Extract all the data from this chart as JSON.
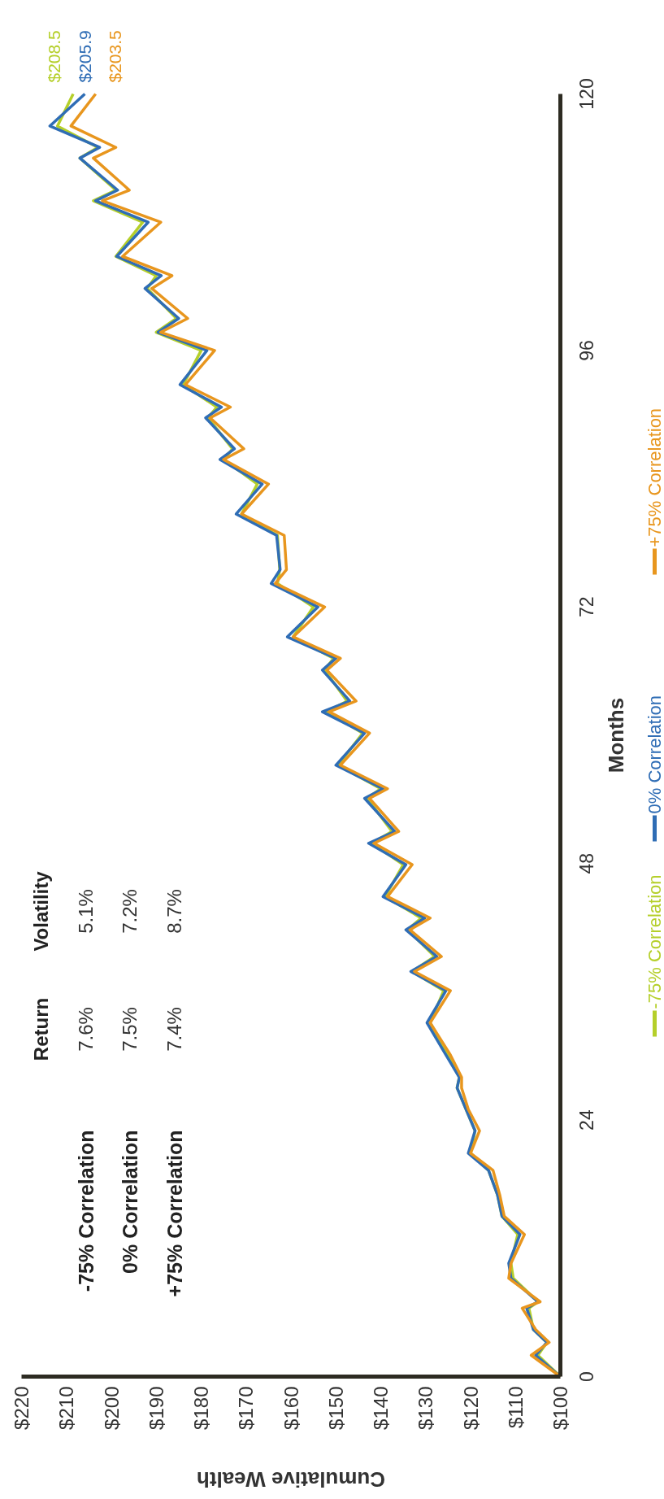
{
  "chart_data": {
    "type": "line",
    "xlabel": "Cumulative Wealth",
    "ylabel": "Months",
    "series": [
      {
        "name": "-75% Correlation",
        "color": "#b5cf2a",
        "x": [
          100,
          105,
          103,
          106,
          107,
          105,
          110.5,
          111,
          109.5,
          113,
          114,
          116,
          120,
          119,
          121,
          123,
          122.5,
          125,
          129,
          126,
          133,
          128,
          134,
          131,
          139,
          135,
          142,
          137.5,
          143,
          140,
          149.5,
          144,
          152,
          147.5,
          152.5,
          150.5,
          159.5,
          155,
          163,
          162.5,
          163,
          171,
          167.5,
          175,
          173,
          178.5,
          176.5,
          184,
          180,
          190,
          185.5,
          192,
          190,
          199,
          193,
          204,
          199,
          207,
          203,
          212,
          208.5
        ],
        "values": [
          0,
          2,
          3.2,
          4.4,
          6.4,
          7,
          9.2,
          10.6,
          13.3,
          15,
          17,
          19.3,
          20.9,
          23,
          25,
          27,
          28,
          30.1,
          33.1,
          36.1,
          37.9,
          39.3,
          41.8,
          42.9,
          44.9,
          47.9,
          49.9,
          51,
          54.1,
          55,
          57.2,
          60.2,
          62.2,
          63.2,
          66.1,
          67.2,
          69.2,
          72,
          74.2,
          75.5,
          78.7,
          80.7,
          83.5,
          85.8,
          86.8,
          89.7,
          90.7,
          92.8,
          96,
          97.7,
          99,
          101.8,
          103,
          104.8,
          108,
          110,
          111,
          114,
          115,
          117,
          120
        ]
      },
      {
        "name": "0% Correlation",
        "color": "#2f6db5",
        "x": [
          100,
          105.5,
          103,
          106,
          107.5,
          105,
          111,
          111.5,
          109,
          113,
          114,
          116,
          120.5,
          119,
          121,
          123,
          122.5,
          125.5,
          129.7,
          125.5,
          133.3,
          127.5,
          134.4,
          130.2,
          139.5,
          134.4,
          142.7,
          136.9,
          143.6,
          139.5,
          150,
          143.6,
          153,
          146.9,
          153,
          150,
          160.8,
          154,
          164.4,
          162.4,
          163.2,
          172.2,
          166.4,
          175.8,
          172.6,
          179,
          175.5,
          184.7,
          178.7,
          189.6,
          185,
          192.5,
          188.9,
          198.8,
          191.8,
          203.5,
          198.6,
          207,
          202.6,
          213.7,
          205.9
        ],
        "values": [
          0,
          2,
          3.2,
          4.4,
          6.4,
          7,
          9.2,
          10.6,
          13.3,
          15,
          17,
          19.3,
          20.9,
          23,
          25,
          27,
          28,
          30.1,
          33.1,
          36.1,
          37.9,
          39.3,
          41.8,
          42.9,
          44.9,
          47.9,
          49.9,
          51,
          54.1,
          55,
          57.2,
          60.2,
          62.2,
          63.2,
          66.1,
          67.2,
          69.2,
          72,
          74.2,
          75.5,
          78.7,
          80.7,
          83.5,
          85.8,
          86.8,
          89.7,
          90.7,
          92.8,
          96,
          97.7,
          99,
          101.8,
          103,
          104.8,
          108,
          110,
          111,
          114,
          115,
          117,
          120
        ]
      },
      {
        "name": "+75% Correlation",
        "color": "#e8961e",
        "x": [
          100,
          106.5,
          102.5,
          105.5,
          108.5,
          104.5,
          111.5,
          111,
          108,
          112.5,
          113.5,
          115,
          120,
          118,
          120.5,
          122,
          122,
          124.5,
          129,
          124.5,
          132.5,
          126.5,
          133.5,
          129,
          138.5,
          133,
          141.5,
          136,
          142.5,
          138.5,
          149,
          142.5,
          151.5,
          145.5,
          152,
          149,
          159.5,
          152.5,
          163.5,
          161,
          161.5,
          171,
          165,
          175,
          170.5,
          178,
          173.5,
          183.5,
          177,
          189,
          183,
          191,
          186.5,
          197.5,
          189,
          202,
          196,
          204,
          199,
          209,
          203.5
        ],
        "values": [
          0,
          2,
          3.2,
          4.4,
          6.4,
          7,
          9.2,
          10.6,
          13.3,
          15,
          17,
          19.3,
          20.9,
          23,
          25,
          27,
          28,
          30.1,
          33.1,
          36.1,
          37.9,
          39.3,
          41.8,
          42.9,
          44.9,
          47.9,
          49.9,
          51,
          54.1,
          55,
          57.2,
          60.2,
          62.2,
          63.2,
          66.1,
          67.2,
          69.2,
          72,
          74.2,
          75.5,
          78.7,
          80.7,
          83.5,
          85.8,
          86.8,
          89.7,
          90.7,
          92.8,
          96,
          97.7,
          99,
          101.8,
          103,
          104.8,
          108,
          110,
          111,
          114,
          115,
          117,
          120
        ]
      }
    ],
    "xlim": [
      220,
      100
    ],
    "xticks": [
      {
        "value": 220,
        "label": "$220"
      },
      {
        "value": 210,
        "label": "$210"
      },
      {
        "value": 200,
        "label": "$200"
      },
      {
        "value": 190,
        "label": "$190"
      },
      {
        "value": 180,
        "label": "$180"
      },
      {
        "value": 170,
        "label": "$170"
      },
      {
        "value": 160,
        "label": "$160"
      },
      {
        "value": 150,
        "label": "$150"
      },
      {
        "value": 140,
        "label": "$140"
      },
      {
        "value": 130,
        "label": "$130"
      },
      {
        "value": 120,
        "label": "$120"
      },
      {
        "value": 110,
        "label": "$110"
      },
      {
        "value": 100,
        "label": "$100"
      }
    ],
    "ylim": [
      0,
      120
    ],
    "yticks": [
      0,
      24,
      48,
      72,
      96,
      120
    ],
    "legend": "right",
    "annotations": [
      "Return",
      "Volatility",
      "-75% Correlation",
      "7.6%",
      "5.1%",
      "0% Correlation",
      "7.5%",
      "7.2%",
      "+75% Correlation",
      "7.4%",
      "8.7%",
      {
        "text": "$208.5",
        "x": 208.5,
        "y": 120
      },
      {
        "text": "$205.9",
        "x": 205.9,
        "y": 120
      },
      {
        "text": "$203.5",
        "x": 203.5,
        "y": 120
      }
    ]
  }
}
